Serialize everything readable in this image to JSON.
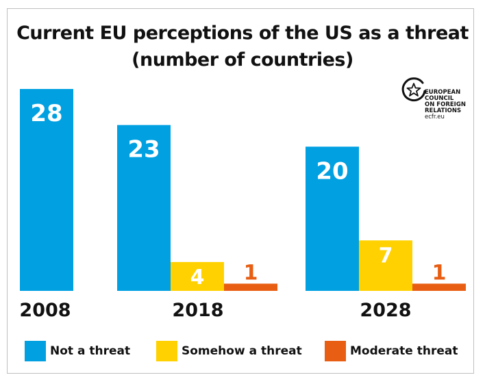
{
  "chart_data": {
    "type": "bar",
    "title_line1": "Current EU perceptions of the US as a threat",
    "title_line2": "(number of countries)",
    "categories": [
      "2008",
      "2018",
      "2028"
    ],
    "series": [
      {
        "name": "Not a threat",
        "color": "#00A0E1",
        "values": [
          28,
          23,
          20
        ]
      },
      {
        "name": "Somehow a threat",
        "color": "#FFD100",
        "values": [
          null,
          4,
          7
        ]
      },
      {
        "name": "Moderate threat",
        "color": "#E85E12",
        "values": [
          null,
          1,
          1
        ]
      }
    ],
    "ylim": [
      0,
      28
    ],
    "grid": false,
    "legend_position": "bottom"
  },
  "logo": {
    "line1": "EUROPEAN",
    "line2": "COUNCIL",
    "line3": "ON FOREIGN",
    "line4": "RELATIONS",
    "url": "ecfr.eu"
  }
}
